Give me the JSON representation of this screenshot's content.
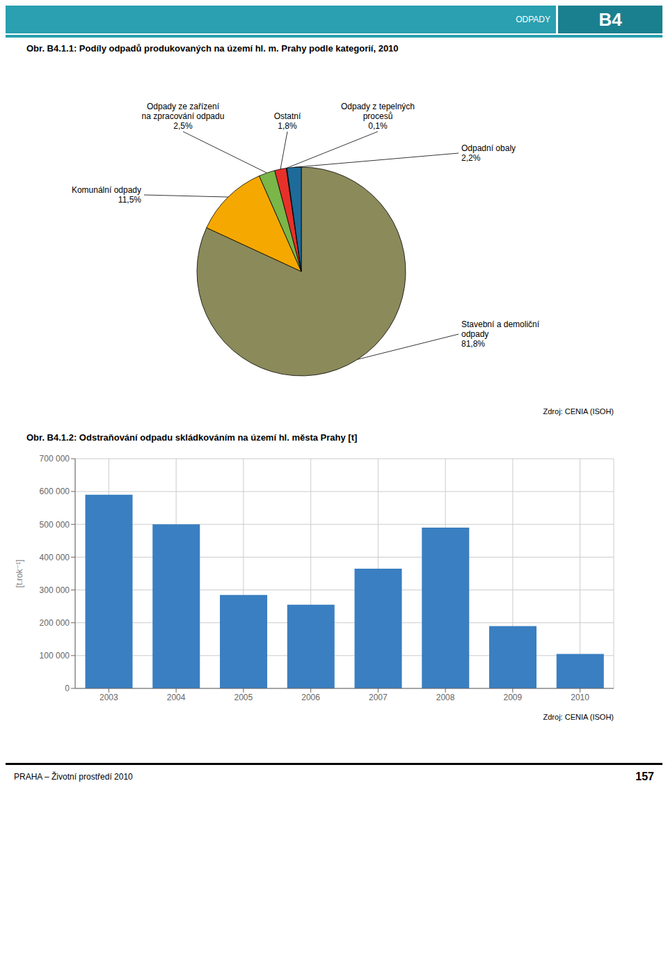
{
  "chart_data": [
    {
      "type": "pie",
      "title": "Obr. B4.1.1: Podíly odpadů produkovaných na území hl. m. Prahy podle kategorií, 2010",
      "categories": [
        "Stavební a demoliční odpady",
        "Komunální odpady",
        "Odpady ze zařízení na zpracování odpadu",
        "Ostatní",
        "Odpady z tepelných procesů",
        "Odpadní obaly"
      ],
      "values": [
        81.8,
        11.5,
        2.5,
        1.8,
        0.1,
        2.2
      ],
      "value_labels": [
        "81,8%",
        "11,5%",
        "2,5%",
        "1,8%",
        "0,1%",
        "2,2%"
      ],
      "colors": [
        "#8b8a5a",
        "#f5a800",
        "#7ab648",
        "#e8302a",
        "#008080",
        "#1e6b99"
      ],
      "data_labels": true,
      "annotations": [
        "ODPADY",
        "B4",
        "Zdroj: CENIA (ISOH)"
      ]
    },
    {
      "type": "bar",
      "title": "Obr. B4.1.2: Odstraňování odpadu skládkováním na území hl. města Prahy [t]",
      "categories": [
        "2003",
        "2004",
        "2005",
        "2006",
        "2007",
        "2008",
        "2009",
        "2010"
      ],
      "values": [
        590000,
        500000,
        285000,
        255000,
        365000,
        490000,
        190000,
        105000
      ],
      "color": "#3a7fc1",
      "ylabel": "[t.rok⁻¹]",
      "ylim": [
        0,
        700000
      ],
      "yticks": [
        0,
        {
          "value": 100000,
          "label": "100 000"
        },
        {
          "value": 200000,
          "label": "200 000"
        },
        {
          "value": 300000,
          "label": "300 000"
        },
        {
          "value": 400000,
          "label": "400 000"
        },
        {
          "value": 500000,
          "label": "500 000"
        },
        {
          "value": 600000,
          "label": "600 000"
        },
        {
          "value": 700000,
          "label": "700 000"
        }
      ],
      "grid": true,
      "annotations": [
        "Zdroj: CENIA (ISOH)",
        "PRAHA – Životní prostředí 2010",
        "157"
      ]
    }
  ]
}
